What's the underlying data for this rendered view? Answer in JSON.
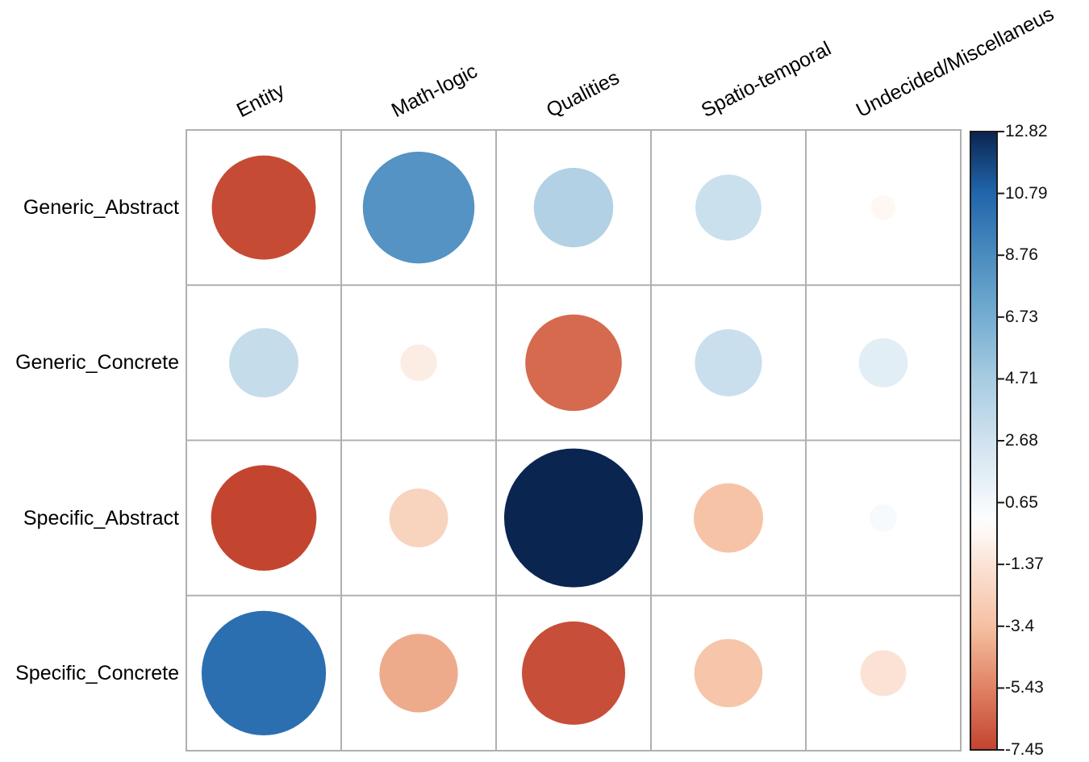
{
  "chart_data": {
    "type": "scatter",
    "subtype": "correlation-bubble-matrix",
    "title": "",
    "rows": [
      "Generic_Abstract",
      "Generic_Concrete",
      "Specific_Abstract",
      "Specific_Concrete"
    ],
    "columns": [
      "Entity",
      "Math-logic",
      "Qualities",
      "Spatio-temporal",
      "Undecided/Miscellaneus"
    ],
    "series": [
      {
        "name": "Generic_Abstract",
        "values": [
          -7.2,
          8.3,
          4.2,
          2.9,
          -0.4
        ]
      },
      {
        "name": "Generic_Concrete",
        "values": [
          3.2,
          -0.9,
          -6.2,
          3.0,
          1.6
        ]
      },
      {
        "name": "Specific_Abstract",
        "values": [
          -7.4,
          -2.3,
          12.82,
          -3.2,
          0.5
        ]
      },
      {
        "name": "Specific_Concrete",
        "values": [
          10.3,
          -4.1,
          -7.1,
          -3.1,
          -1.4
        ]
      }
    ],
    "encoding": "circle area proportional to |value|; circle color from diverging red-white-blue scale",
    "value_range": [
      -7.45,
      12.82
    ],
    "colorbar": {
      "ticks": [
        "12.82",
        "10.79",
        "8.76",
        "6.73",
        "4.71",
        "2.68",
        "0.65",
        "-1.37",
        "-3.4",
        "-5.43",
        "-7.45"
      ],
      "top_value": 12.82,
      "bottom_value": -7.45,
      "position": "right"
    },
    "colors": {
      "grid_line": "#b0b0b0",
      "colorbar_border": "#1a1a1a",
      "tick_mark": "#1a1a1a",
      "max_blue": "#0a2550",
      "max_red": "#c2432f",
      "white_point": "#ffffff",
      "positive_stops": [
        [
          0,
          "#ffffff"
        ],
        [
          0.209,
          "#cfe2ef"
        ],
        [
          0.367,
          "#a8cce1"
        ],
        [
          0.525,
          "#74add1"
        ],
        [
          0.683,
          "#4b8cbf"
        ],
        [
          0.842,
          "#2166ac"
        ],
        [
          1,
          "#0a2550"
        ]
      ],
      "negative_stops": [
        [
          0,
          "#ffffff"
        ],
        [
          0.184,
          "#fbe3d6"
        ],
        [
          0.456,
          "#f5c0a2"
        ],
        [
          0.729,
          "#e08263"
        ],
        [
          1,
          "#c2432f"
        ]
      ]
    },
    "layout_hints": {
      "grid": "on",
      "column_labels": "rotated, top",
      "row_labels": "left"
    }
  }
}
